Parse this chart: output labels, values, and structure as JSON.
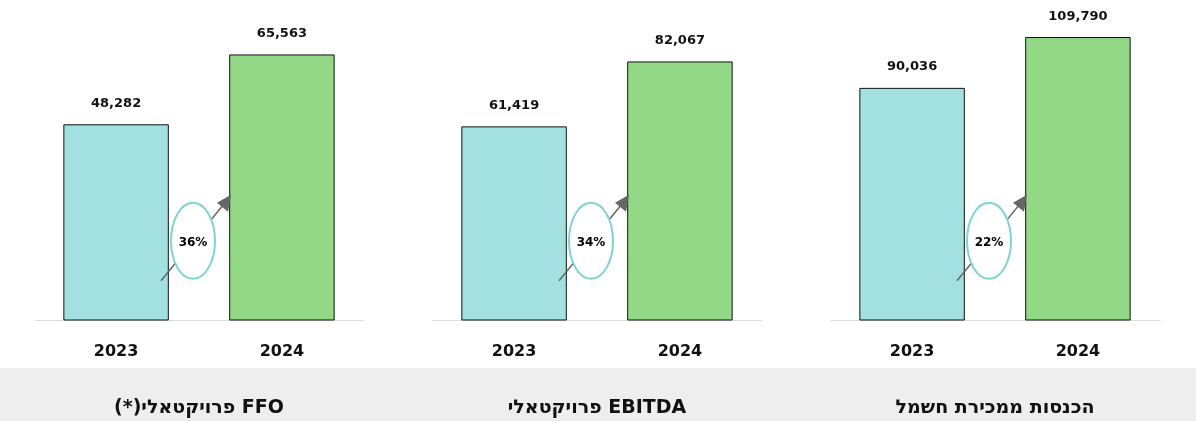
{
  "chart_data": [
    {
      "type": "bar",
      "title": "(*)פרויקטאלי FFO",
      "categories": [
        "2023",
        "2024"
      ],
      "values": [
        48282,
        65563
      ],
      "value_labels": [
        "48,282",
        "65,563"
      ],
      "colors": [
        "#a3e0e0",
        "#92d886"
      ],
      "annotations": [
        "36%"
      ],
      "legend": false,
      "grid": false
    },
    {
      "type": "bar",
      "title": "פרויקטאלי EBITDA",
      "categories": [
        "2023",
        "2024"
      ],
      "values": [
        61419,
        82067
      ],
      "value_labels": [
        "61,419",
        "82,067"
      ],
      "colors": [
        "#a3e0e0",
        "#92d886"
      ],
      "annotations": [
        "34%"
      ],
      "legend": false,
      "grid": false
    },
    {
      "type": "bar",
      "title": "הכנסות ממכירת חשמל",
      "categories": [
        "2023",
        "2024"
      ],
      "values": [
        90036,
        109790
      ],
      "value_labels": [
        "90,036",
        "109,790"
      ],
      "colors": [
        "#a3e0e0",
        "#92d886"
      ],
      "annotations": [
        "22%"
      ],
      "legend": false,
      "grid": false
    }
  ]
}
